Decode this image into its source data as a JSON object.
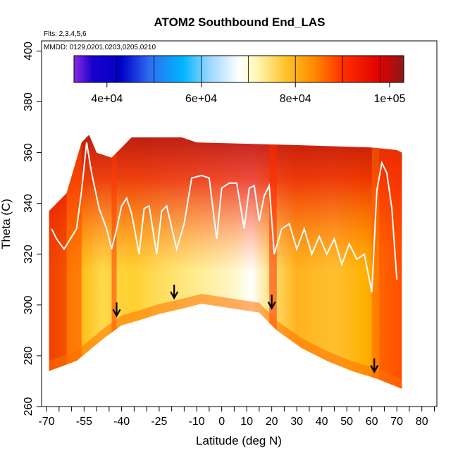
{
  "chart_data": {
    "type": "heatmap",
    "title": "ATOM2 Southbound End_LAS",
    "subtitle_flights": "Flts: 2,3,4,5,6",
    "subtitle_dates": "MMDD: 0129,0201,0203,0205,0210",
    "xlabel": "Latitude (deg N)",
    "ylabel": "Theta (C)",
    "xlim": [
      -72,
      86
    ],
    "ylim": [
      260,
      404
    ],
    "x_ticks": [
      -70,
      -55,
      -40,
      -25,
      -10,
      0,
      10,
      20,
      30,
      40,
      50,
      60,
      70,
      80
    ],
    "x_tick_labels": [
      "-70",
      "-55",
      "-40",
      "-25",
      "-10",
      "0",
      "10",
      "20",
      "30",
      "40",
      "50",
      "60",
      "70",
      "80"
    ],
    "x_minor_ticks": [
      -65,
      -60,
      -50,
      -45,
      -35,
      -30,
      -20,
      -15,
      -5,
      5,
      15,
      25,
      35,
      45,
      55,
      65,
      75,
      85
    ],
    "y_ticks": [
      260,
      280,
      300,
      320,
      340,
      360,
      380,
      400
    ],
    "y_tick_labels": [
      "260",
      "280",
      "300",
      "320",
      "340",
      "360",
      "380",
      "400"
    ],
    "colorbar": {
      "range": [
        33000,
        103000
      ],
      "tick_values": [
        40000,
        60000,
        80000,
        100000
      ],
      "tick_labels": [
        "4e+04",
        "6e+04",
        "8e+04",
        "1e+05"
      ],
      "stops": [
        {
          "value": 33000,
          "color": "#8a2be2"
        },
        {
          "value": 37000,
          "color": "#1a00cc"
        },
        {
          "value": 43000,
          "color": "#0000c8"
        },
        {
          "value": 49000,
          "color": "#2e6cf0"
        },
        {
          "value": 56000,
          "color": "#00b4ff"
        },
        {
          "value": 62000,
          "color": "#9fd8ff"
        },
        {
          "value": 68000,
          "color": "#ffffff"
        },
        {
          "value": 72000,
          "color": "#fff6b0"
        },
        {
          "value": 78000,
          "color": "#ffc22a"
        },
        {
          "value": 84000,
          "color": "#ff8a00"
        },
        {
          "value": 90000,
          "color": "#ff3000"
        },
        {
          "value": 98000,
          "color": "#e00000"
        },
        {
          "value": 103000,
          "color": "#8b1a1a"
        }
      ],
      "band_edges": [
        42000,
        50000,
        60000,
        70000,
        80000,
        90000,
        98000
      ]
    },
    "series": [
      {
        "name": "domain boundary (lower)",
        "points": [
          [
            -69,
            274
          ],
          [
            -58,
            278
          ],
          [
            -47,
            287
          ],
          [
            -40,
            292
          ],
          [
            -33,
            294
          ],
          [
            -25,
            296.5
          ],
          [
            -16,
            298.5
          ],
          [
            -8,
            300.5
          ],
          [
            5,
            298.5
          ],
          [
            15,
            297
          ],
          [
            22,
            290
          ],
          [
            32,
            283
          ],
          [
            42,
            278
          ],
          [
            52,
            274
          ],
          [
            62,
            271
          ],
          [
            72,
            267
          ]
        ]
      },
      {
        "name": "domain boundary (upper)",
        "points": [
          [
            -69,
            337
          ],
          [
            -62,
            344
          ],
          [
            -56,
            364
          ],
          [
            -53,
            367
          ],
          [
            -50,
            360
          ],
          [
            -44,
            358
          ],
          [
            -36,
            366
          ],
          [
            -16,
            366
          ],
          [
            -10,
            364
          ],
          [
            28,
            363
          ],
          [
            60,
            362
          ],
          [
            70,
            361
          ],
          [
            72,
            360
          ]
        ]
      },
      {
        "name": "tropopause flight tracks",
        "points": [
          [
            -68,
            330
          ],
          [
            -66,
            326
          ],
          [
            -63,
            322
          ],
          [
            -58,
            330
          ],
          [
            -56,
            345
          ],
          [
            -54,
            364
          ],
          [
            -52,
            352
          ],
          [
            -49,
            338
          ],
          [
            -46,
            330
          ],
          [
            -44,
            322
          ],
          [
            -42,
            330
          ],
          [
            -40,
            339
          ],
          [
            -38,
            342
          ],
          [
            -36,
            336
          ],
          [
            -33,
            320
          ],
          [
            -31,
            338
          ],
          [
            -29,
            339
          ],
          [
            -26,
            320
          ],
          [
            -24,
            337
          ],
          [
            -22,
            339
          ],
          [
            -18,
            322
          ],
          [
            -15,
            332
          ],
          [
            -12,
            350
          ],
          [
            -8,
            351
          ],
          [
            -5,
            350
          ],
          [
            -2,
            326
          ],
          [
            0,
            346
          ],
          [
            3,
            348
          ],
          [
            6,
            348
          ],
          [
            9,
            330
          ],
          [
            11,
            346
          ],
          [
            13,
            347
          ],
          [
            15,
            333
          ],
          [
            17,
            343
          ],
          [
            19,
            347
          ],
          [
            21,
            320
          ],
          [
            24,
            330
          ],
          [
            27,
            332
          ],
          [
            30,
            322
          ],
          [
            33,
            330
          ],
          [
            36,
            320
          ],
          [
            39,
            327
          ],
          [
            42,
            320
          ],
          [
            45,
            326
          ],
          [
            48,
            316
          ],
          [
            51,
            324
          ],
          [
            54,
            318
          ],
          [
            57,
            320
          ],
          [
            60,
            305
          ],
          [
            62,
            345
          ],
          [
            64,
            356
          ],
          [
            66,
            352
          ],
          [
            68,
            338
          ],
          [
            70,
            310
          ]
        ]
      },
      {
        "name": "profile markers (arrows)",
        "points": [
          [
            -42,
            296
          ],
          [
            -19,
            303
          ],
          [
            20,
            299
          ],
          [
            61,
            274
          ]
        ]
      }
    ]
  }
}
